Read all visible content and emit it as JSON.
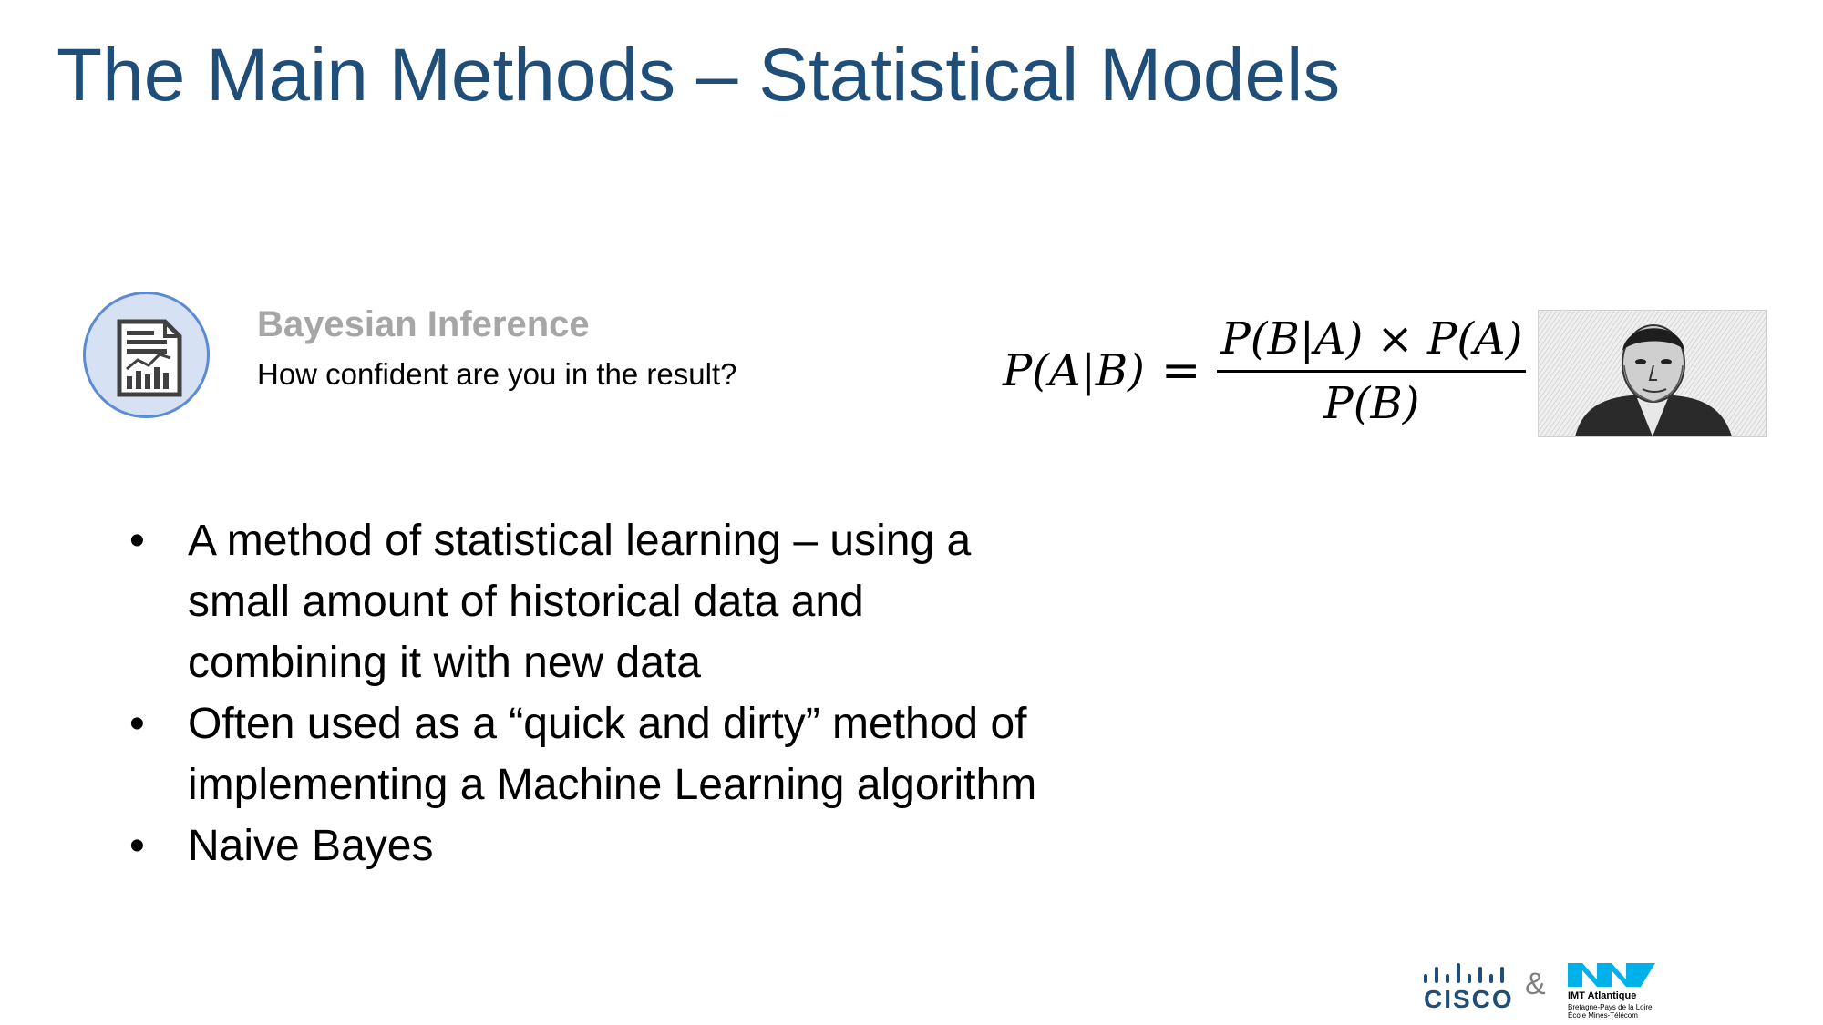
{
  "slide": {
    "title": "The Main Methods – Statistical Models"
  },
  "topic": {
    "icon": "report-chart-icon",
    "title": "Bayesian Inference",
    "subtitle": "How confident are you in the result?"
  },
  "formula": {
    "lhs": "P(A|B)",
    "equals": "=",
    "numerator": "P(B|A) × P(A)",
    "denominator": "P(B)"
  },
  "portrait": {
    "icon": "portrait-engraving"
  },
  "bullets": [
    "A method of statistical learning – using a small amount of historical data and combining it with new data",
    "Often used as a “quick and dirty” method of implementing a Machine Learning algorithm",
    "Naive Bayes"
  ],
  "footer": {
    "cisco_label": "CISCO",
    "ampersand": "&",
    "imt_name": "IMT Atlantique",
    "imt_line1": "Bretagne-Pays de la Loire",
    "imt_line2": "École Mines-Télécom"
  },
  "colors": {
    "title": "#1f4e79",
    "icon_fill": "#d6e2f3",
    "icon_border": "#5b8bd0",
    "topic_title": "#a6a6a6",
    "imt_brand": "#00b0e8"
  }
}
